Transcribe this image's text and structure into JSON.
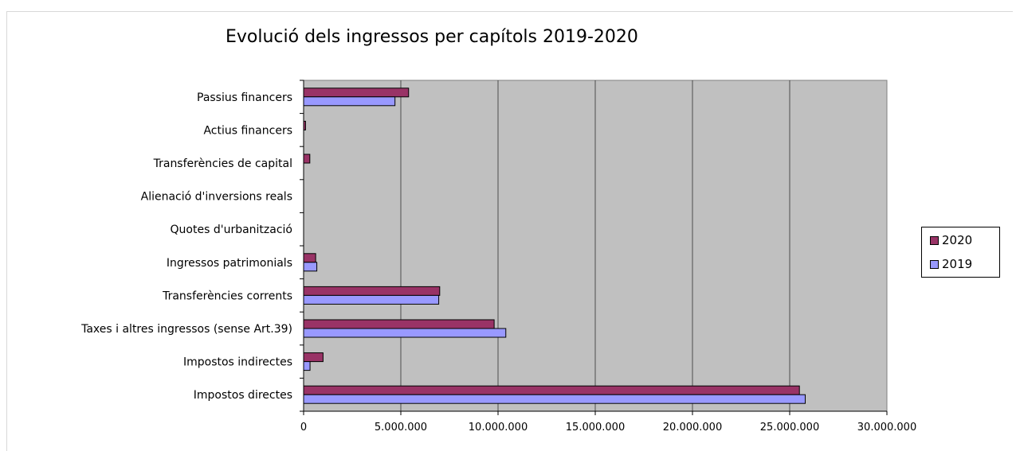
{
  "chart_data": {
    "type": "bar",
    "orientation": "horizontal",
    "title": "Evolució dels ingressos per capítols 2019-2020",
    "xlabel": "",
    "ylabel": "",
    "xlim": [
      0,
      30000000
    ],
    "x_ticks": [
      0,
      5000000,
      10000000,
      15000000,
      20000000,
      25000000,
      30000000
    ],
    "x_tick_labels": [
      "0",
      "5.000.000",
      "10.000.000",
      "15.000.000",
      "20.000.000",
      "25.000.000",
      "30.000.000"
    ],
    "grid": true,
    "legend_position": "right",
    "plot_background": "#c0c0c0",
    "categories": [
      "Impostos directes",
      "Impostos indirectes",
      "Taxes i altres ingressos (sense Art.39)",
      "Transferències corrents",
      "Ingressos patrimonials",
      "Quotes d'urbanització",
      "Alienació d'inversions reals",
      "Transferències de capital",
      "Actius financers",
      "Passius financers"
    ],
    "series": [
      {
        "name": "2020",
        "color": "#993366",
        "values": [
          25500000,
          1000000,
          9800000,
          7000000,
          620000,
          0,
          0,
          320000,
          100000,
          5400000
        ]
      },
      {
        "name": "2019",
        "color": "#9999ff",
        "values": [
          25800000,
          330000,
          10400000,
          6950000,
          680000,
          0,
          0,
          0,
          0,
          4700000
        ]
      }
    ]
  }
}
